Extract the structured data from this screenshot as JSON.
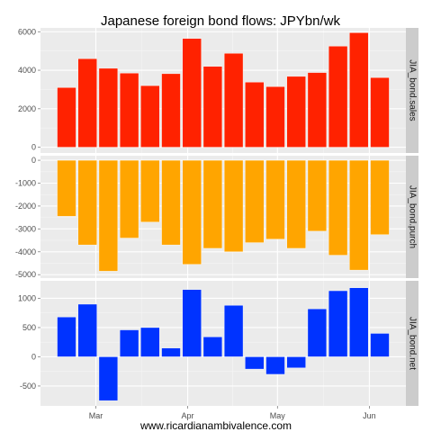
{
  "chart_data": {
    "type": "bar",
    "title": "Japanese foreign bond flows: JPYbn/wk",
    "caption": "www.ricardianambivalence.com",
    "x_tick_labels": [
      "Mar",
      "Apr",
      "May",
      "Jun"
    ],
    "x_tick_weeks": [
      1.4,
      5.8,
      10.1,
      14.5
    ],
    "weeks": 16,
    "grid": true,
    "panels": [
      {
        "strip_label": "JIA_bond.sales",
        "color": "#ff2200",
        "ylim": [
          -300,
          6200
        ],
        "yticks": [
          0,
          2000,
          4000,
          6000
        ],
        "values": [
          3100,
          4600,
          4100,
          3850,
          3200,
          3820,
          5650,
          4200,
          4880,
          3380,
          3150,
          3680,
          3880,
          5250,
          5950,
          3620
        ]
      },
      {
        "strip_label": "JIA_bond.purch",
        "color": "#ffa500",
        "ylim": [
          -5150,
          200
        ],
        "yticks": [
          -5000,
          -4000,
          -3000,
          -2000,
          -1000,
          0
        ],
        "values": [
          -2450,
          -3700,
          -4850,
          -3400,
          -2700,
          -3700,
          -4550,
          -3850,
          -4000,
          -3600,
          -3450,
          -3850,
          -3100,
          -4150,
          -4800,
          -3250
        ]
      },
      {
        "strip_label": "JIA_bond.net",
        "color": "#0033ff",
        "ylim": [
          -840,
          1300
        ],
        "yticks": [
          -500,
          0,
          500,
          1000
        ],
        "values": [
          680,
          900,
          -750,
          460,
          500,
          150,
          1150,
          340,
          880,
          -210,
          -300,
          -190,
          820,
          1130,
          1180,
          400
        ]
      }
    ]
  }
}
